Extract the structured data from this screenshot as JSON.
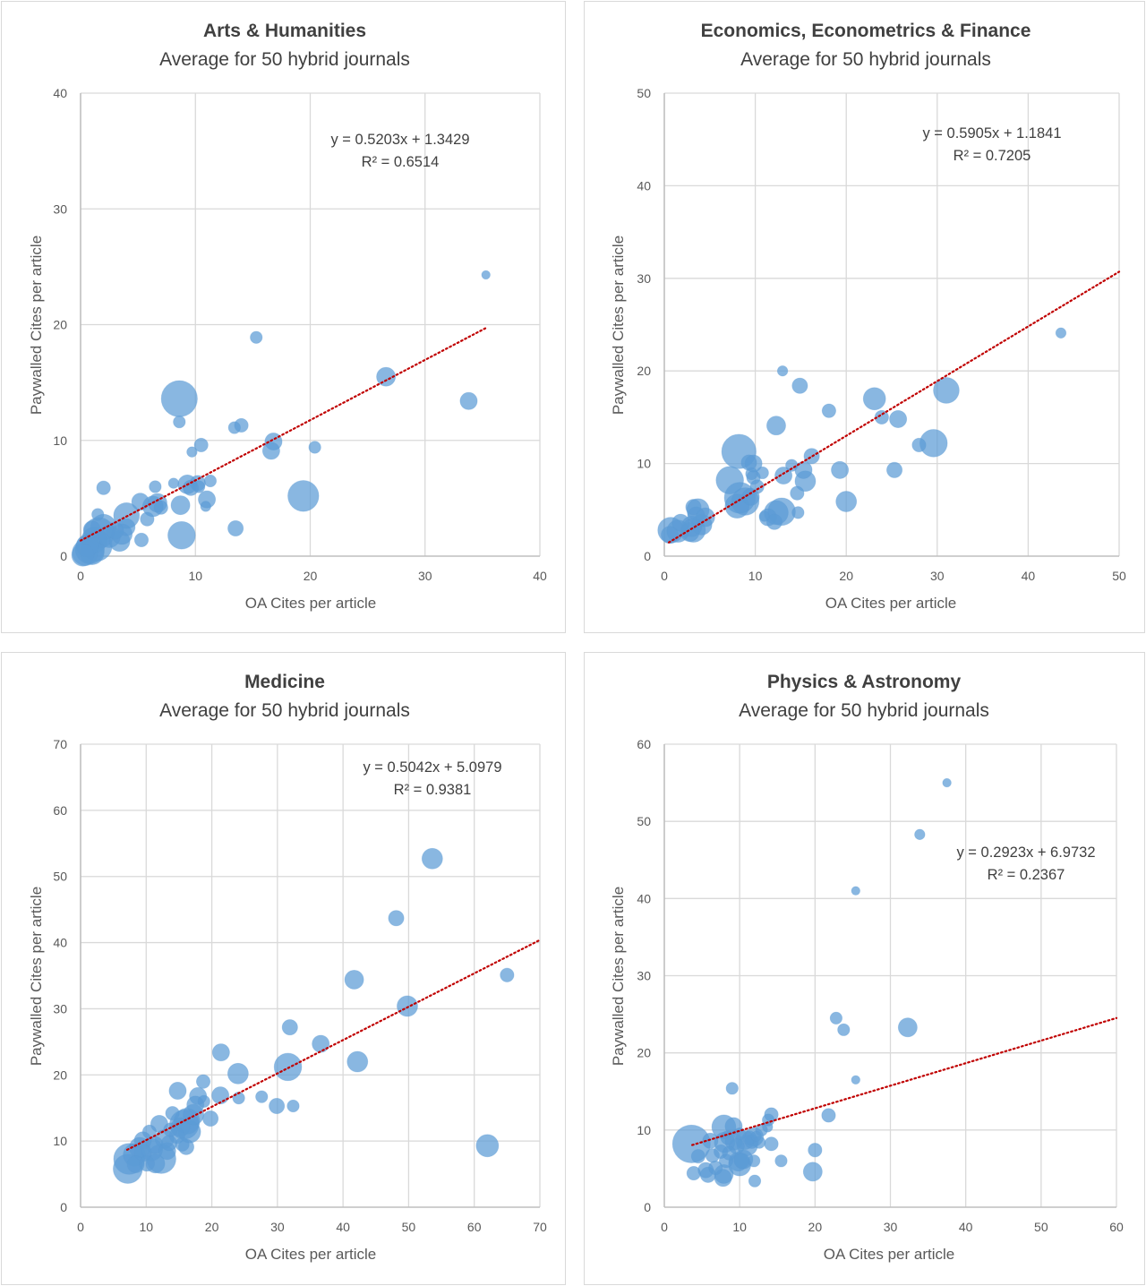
{
  "chart_data": [
    {
      "type": "scatter",
      "subtype": "bubble",
      "title": "Arts & Humanities",
      "subtitle": "Average for 50 hybrid journals",
      "xlabel": "OA Cites per article",
      "ylabel": "Paywalled Cites per article",
      "xlim": [
        0,
        40
      ],
      "ylim": [
        0,
        40
      ],
      "xticks": [
        0,
        10,
        20,
        30,
        40
      ],
      "yticks": [
        0,
        10,
        20,
        30,
        40
      ],
      "grid": true,
      "legend": "none",
      "trendline": {
        "slope": 0.5203,
        "intercept": 1.3429,
        "x_range": [
          0,
          35.3
        ],
        "equation": "y = 0.5203x + 1.3429",
        "r_squared": "R² = 0.6514"
      },
      "points_format": [
        "x",
        "y",
        "relative_size"
      ],
      "points": [
        [
          35.3,
          24.3,
          1.0
        ],
        [
          15.3,
          18.9,
          1.4
        ],
        [
          8.6,
          13.6,
          4.2
        ],
        [
          8.6,
          11.6,
          1.4
        ],
        [
          13.4,
          11.1,
          1.4
        ],
        [
          14.0,
          11.3,
          1.6
        ],
        [
          26.6,
          15.5,
          2.2
        ],
        [
          33.8,
          13.4,
          2.0
        ],
        [
          16.8,
          9.9,
          2.0
        ],
        [
          16.6,
          9.1,
          2.0
        ],
        [
          20.4,
          9.4,
          1.4
        ],
        [
          10.5,
          9.6,
          1.6
        ],
        [
          9.7,
          9.0,
          1.2
        ],
        [
          19.4,
          5.2,
          3.6
        ],
        [
          11.3,
          6.5,
          1.4
        ],
        [
          10.2,
          6.3,
          1.8
        ],
        [
          9.3,
          6.2,
          2.2
        ],
        [
          9.6,
          5.9,
          1.8
        ],
        [
          10.3,
          6.0,
          1.4
        ],
        [
          11.0,
          4.9,
          2.0
        ],
        [
          10.9,
          4.3,
          1.2
        ],
        [
          8.1,
          6.3,
          1.2
        ],
        [
          6.5,
          6.0,
          1.4
        ],
        [
          7.0,
          4.2,
          1.6
        ],
        [
          6.7,
          4.6,
          2.2
        ],
        [
          6.3,
          4.3,
          2.4
        ],
        [
          5.2,
          4.7,
          2.0
        ],
        [
          5.8,
          3.2,
          1.6
        ],
        [
          8.7,
          4.4,
          2.2
        ],
        [
          8.8,
          1.8,
          3.2
        ],
        [
          5.3,
          1.4,
          1.6
        ],
        [
          13.5,
          2.4,
          1.8
        ],
        [
          4.0,
          3.5,
          3.0
        ],
        [
          4.0,
          2.5,
          2.0
        ],
        [
          3.4,
          1.3,
          2.4
        ],
        [
          2.0,
          5.9,
          1.6
        ],
        [
          1.5,
          3.6,
          1.4
        ],
        [
          2.0,
          2.5,
          3.0
        ],
        [
          1.6,
          2.0,
          3.6
        ],
        [
          1.2,
          1.4,
          3.0
        ],
        [
          1.4,
          0.9,
          3.6
        ],
        [
          0.8,
          0.6,
          3.4
        ],
        [
          0.6,
          0.9,
          2.6
        ],
        [
          0.4,
          0.3,
          3.0
        ],
        [
          0.2,
          0.1,
          2.6
        ],
        [
          1.0,
          0.3,
          2.8
        ],
        [
          2.5,
          1.7,
          2.6
        ],
        [
          3.0,
          2.2,
          2.0
        ],
        [
          1.0,
          2.3,
          2.0
        ],
        [
          3.6,
          1.9,
          2.4
        ]
      ]
    },
    {
      "type": "scatter",
      "subtype": "bubble",
      "title": "Economics, Econometrics & Finance",
      "subtitle": "Average for 50 hybrid journals",
      "xlabel": "OA Cites per article",
      "ylabel": "Paywalled Cites per article",
      "xlim": [
        0,
        50
      ],
      "ylim": [
        0,
        50
      ],
      "xticks": [
        0,
        10,
        20,
        30,
        40,
        50
      ],
      "yticks": [
        0,
        10,
        20,
        30,
        40,
        50
      ],
      "grid": true,
      "legend": "none",
      "trendline": {
        "slope": 0.5905,
        "intercept": 1.1841,
        "x_range": [
          0.5,
          50
        ],
        "equation": "y = 0.5905x + 1.1841",
        "r_squared": "R² = 0.7205"
      },
      "points_format": [
        "x",
        "y",
        "relative_size"
      ],
      "points": [
        [
          43.6,
          24.1,
          1.2
        ],
        [
          13.0,
          20.0,
          1.2
        ],
        [
          14.9,
          18.4,
          1.8
        ],
        [
          31.0,
          17.9,
          3.0
        ],
        [
          23.1,
          17.0,
          2.6
        ],
        [
          18.1,
          15.7,
          1.6
        ],
        [
          23.9,
          15.0,
          1.6
        ],
        [
          25.7,
          14.8,
          2.0
        ],
        [
          12.3,
          14.1,
          2.2
        ],
        [
          29.6,
          12.2,
          3.2
        ],
        [
          28.0,
          12.0,
          1.6
        ],
        [
          16.2,
          10.8,
          1.8
        ],
        [
          8.2,
          11.3,
          4.0
        ],
        [
          9.8,
          10.0,
          2.0
        ],
        [
          9.6,
          8.9,
          1.4
        ],
        [
          10.8,
          9.0,
          1.4
        ],
        [
          15.3,
          9.3,
          2.0
        ],
        [
          19.3,
          9.3,
          2.0
        ],
        [
          25.3,
          9.3,
          1.8
        ],
        [
          13.1,
          8.7,
          2.0
        ],
        [
          15.5,
          8.1,
          2.4
        ],
        [
          7.2,
          8.2,
          3.2
        ],
        [
          10.2,
          7.5,
          1.6
        ],
        [
          14.6,
          6.8,
          1.6
        ],
        [
          8.3,
          6.3,
          3.6
        ],
        [
          8.9,
          5.9,
          3.2
        ],
        [
          8.0,
          5.4,
          2.8
        ],
        [
          20.0,
          5.9,
          2.4
        ],
        [
          12.3,
          4.7,
          2.8
        ],
        [
          12.9,
          4.8,
          3.2
        ],
        [
          14.7,
          4.7,
          1.4
        ],
        [
          12.1,
          3.7,
          1.8
        ],
        [
          11.0,
          4.3,
          1.2
        ],
        [
          3.7,
          5.0,
          2.6
        ],
        [
          3.2,
          5.3,
          1.8
        ],
        [
          3.5,
          4.4,
          2.0
        ],
        [
          3.0,
          3.2,
          2.4
        ],
        [
          4.1,
          3.4,
          2.4
        ],
        [
          3.2,
          2.8,
          2.8
        ],
        [
          1.8,
          3.6,
          2.0
        ],
        [
          0.7,
          2.8,
          3.0
        ],
        [
          0.6,
          2.3,
          2.0
        ],
        [
          2.8,
          2.6,
          2.2
        ],
        [
          9.8,
          8.5,
          1.6
        ],
        [
          9.5,
          6.4,
          2.0
        ],
        [
          9.3,
          10.1,
          1.8
        ],
        [
          11.4,
          4.2,
          2.0
        ],
        [
          14.0,
          9.8,
          1.4
        ],
        [
          1.5,
          2.7,
          2.6
        ],
        [
          4.5,
          4.2,
          2.2
        ]
      ]
    },
    {
      "type": "scatter",
      "subtype": "bubble",
      "title": "Medicine",
      "subtitle": "Average for 50 hybrid journals",
      "xlabel": "OA Cites per article",
      "ylabel": "Paywalled Cites per article",
      "xlim": [
        0,
        70
      ],
      "ylim": [
        0,
        70
      ],
      "xticks": [
        0,
        10,
        20,
        30,
        40,
        50,
        60,
        70
      ],
      "yticks": [
        0,
        10,
        20,
        30,
        40,
        50,
        60,
        70
      ],
      "grid": true,
      "legend": "none",
      "trendline": {
        "slope": 0.5042,
        "intercept": 5.0979,
        "x_range": [
          7.1,
          70
        ],
        "equation": "y = 0.5042x + 5.0979",
        "r_squared": "R² = 0.9381"
      },
      "points_format": [
        "x",
        "y",
        "relative_size"
      ],
      "points": [
        [
          53.6,
          52.7,
          2.4
        ],
        [
          48.1,
          43.7,
          1.8
        ],
        [
          65.0,
          35.1,
          1.6
        ],
        [
          41.7,
          34.4,
          2.2
        ],
        [
          49.8,
          30.4,
          2.4
        ],
        [
          31.9,
          27.2,
          1.8
        ],
        [
          36.6,
          24.7,
          2.0
        ],
        [
          42.2,
          22.0,
          2.4
        ],
        [
          21.4,
          23.4,
          2.0
        ],
        [
          24.0,
          20.2,
          2.4
        ],
        [
          31.6,
          21.2,
          3.2
        ],
        [
          18.7,
          19.0,
          1.6
        ],
        [
          14.8,
          17.6,
          2.0
        ],
        [
          17.9,
          16.8,
          2.0
        ],
        [
          21.3,
          16.9,
          2.0
        ],
        [
          24.1,
          16.5,
          1.4
        ],
        [
          27.6,
          16.7,
          1.4
        ],
        [
          29.9,
          15.3,
          1.8
        ],
        [
          32.4,
          15.3,
          1.4
        ],
        [
          17.5,
          15.5,
          2.0
        ],
        [
          19.8,
          13.4,
          1.8
        ],
        [
          16.2,
          13.0,
          3.0
        ],
        [
          15.8,
          12.5,
          3.4
        ],
        [
          12.0,
          12.6,
          2.0
        ],
        [
          16.6,
          11.4,
          2.6
        ],
        [
          14.7,
          10.8,
          1.8
        ],
        [
          9.5,
          10.1,
          2.0
        ],
        [
          11.3,
          9.4,
          2.0
        ],
        [
          13.5,
          9.7,
          1.8
        ],
        [
          9.0,
          9.0,
          2.4
        ],
        [
          62.0,
          9.3,
          2.6
        ],
        [
          7.4,
          7.3,
          3.6
        ],
        [
          8.2,
          7.9,
          2.6
        ],
        [
          12.3,
          7.3,
          3.4
        ],
        [
          7.2,
          5.8,
          3.4
        ],
        [
          11.4,
          6.6,
          2.2
        ],
        [
          9.5,
          8.2,
          2.0
        ],
        [
          10.1,
          6.6,
          1.8
        ],
        [
          13.2,
          8.5,
          2.0
        ],
        [
          15.5,
          9.5,
          1.6
        ],
        [
          16.1,
          9.1,
          1.8
        ],
        [
          10.5,
          11.4,
          1.6
        ],
        [
          13.7,
          11.7,
          1.6
        ],
        [
          18.8,
          16.0,
          1.4
        ],
        [
          14.0,
          14.2,
          1.6
        ],
        [
          17.2,
          14.0,
          2.4
        ],
        [
          15.2,
          12.1,
          2.2
        ],
        [
          10.8,
          8.7,
          2.6
        ],
        [
          8.4,
          6.5,
          2.0
        ],
        [
          12.8,
          10.3,
          2.2
        ]
      ]
    },
    {
      "type": "scatter",
      "subtype": "bubble",
      "title": "Physics & Astronomy",
      "subtitle": "Average for 50 hybrid journals",
      "xlabel": "OA Cites per article",
      "ylabel": "Paywalled Cites per article",
      "xlim": [
        0,
        60
      ],
      "ylim": [
        0,
        60
      ],
      "xticks": [
        0,
        10,
        20,
        30,
        40,
        50,
        60
      ],
      "yticks": [
        0,
        10,
        20,
        30,
        40,
        50,
        60
      ],
      "grid": true,
      "legend": "none",
      "trendline": {
        "slope": 0.2923,
        "intercept": 6.9732,
        "x_range": [
          3.7,
          60
        ],
        "equation": "y = 0.2923x + 6.9732",
        "r_squared": "R² = 0.2367"
      },
      "points_format": [
        "x",
        "y",
        "relative_size"
      ],
      "points": [
        [
          37.5,
          55.0,
          1.0
        ],
        [
          33.9,
          48.3,
          1.2
        ],
        [
          25.4,
          41.0,
          1.0
        ],
        [
          22.8,
          24.5,
          1.4
        ],
        [
          23.8,
          23.0,
          1.4
        ],
        [
          32.3,
          23.3,
          2.2
        ],
        [
          25.4,
          16.5,
          1.0
        ],
        [
          21.8,
          11.9,
          1.6
        ],
        [
          9.0,
          15.4,
          1.4
        ],
        [
          7.9,
          10.4,
          2.8
        ],
        [
          9.2,
          10.5,
          2.0
        ],
        [
          3.6,
          8.2,
          4.4
        ],
        [
          13.8,
          11.3,
          1.4
        ],
        [
          14.2,
          12.0,
          1.6
        ],
        [
          13.7,
          10.4,
          1.2
        ],
        [
          14.2,
          8.2,
          1.6
        ],
        [
          11.9,
          9.1,
          2.2
        ],
        [
          12.6,
          8.4,
          1.4
        ],
        [
          10.7,
          8.7,
          2.2
        ],
        [
          11.0,
          8.0,
          2.4
        ],
        [
          9.2,
          8.5,
          2.0
        ],
        [
          8.0,
          8.4,
          2.4
        ],
        [
          6.4,
          6.7,
          1.6
        ],
        [
          4.5,
          6.6,
          1.6
        ],
        [
          7.5,
          7.2,
          1.6
        ],
        [
          8.2,
          6.0,
          1.6
        ],
        [
          9.8,
          5.9,
          2.2
        ],
        [
          10.0,
          5.5,
          2.6
        ],
        [
          10.5,
          6.2,
          2.2
        ],
        [
          11.9,
          6.0,
          1.4
        ],
        [
          15.5,
          6.0,
          1.4
        ],
        [
          20.0,
          7.4,
          1.6
        ],
        [
          19.7,
          4.6,
          2.2
        ],
        [
          12.0,
          3.4,
          1.4
        ],
        [
          7.8,
          3.8,
          2.0
        ],
        [
          7.9,
          4.3,
          2.2
        ],
        [
          5.8,
          4.2,
          1.8
        ],
        [
          5.5,
          4.8,
          1.8
        ],
        [
          3.9,
          4.4,
          1.6
        ],
        [
          6.8,
          5.1,
          1.6
        ],
        [
          10.3,
          6.0,
          1.8
        ],
        [
          11.6,
          8.5,
          1.6
        ],
        [
          12.2,
          9.2,
          1.2
        ],
        [
          10.0,
          9.5,
          1.4
        ],
        [
          11.3,
          9.0,
          1.6
        ],
        [
          8.6,
          7.0,
          1.6
        ],
        [
          9.6,
          7.9,
          1.8
        ],
        [
          12.9,
          10.0,
          1.4
        ],
        [
          6.1,
          8.6,
          1.8
        ],
        [
          8.4,
          9.0,
          1.6
        ]
      ]
    }
  ]
}
